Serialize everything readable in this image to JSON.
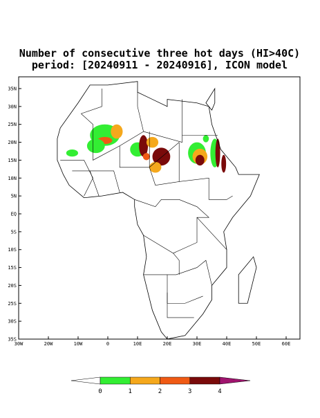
{
  "header": {
    "title": "Number of consecutive three hot days (HI>40C)",
    "subtitle": "period: [20240911 - 20240916], ICON model"
  },
  "map": {
    "lat_ticks": [
      "35N",
      "30N",
      "25N",
      "20N",
      "15N",
      "10N",
      "5N",
      "EQ",
      "5S",
      "10S",
      "15S",
      "20S",
      "25S",
      "30S",
      "35S"
    ],
    "lon_ticks": [
      "30W",
      "20W",
      "10W",
      "0",
      "10E",
      "20E",
      "30E",
      "40E",
      "50E",
      "60E"
    ]
  },
  "colorbar": {
    "labels": [
      "0",
      "1",
      "2",
      "3",
      "4"
    ],
    "colors": [
      "#ffffff",
      "#33ee33",
      "#f5a81c",
      "#f05a14",
      "#7a0a0a",
      "#a0146e"
    ]
  }
}
